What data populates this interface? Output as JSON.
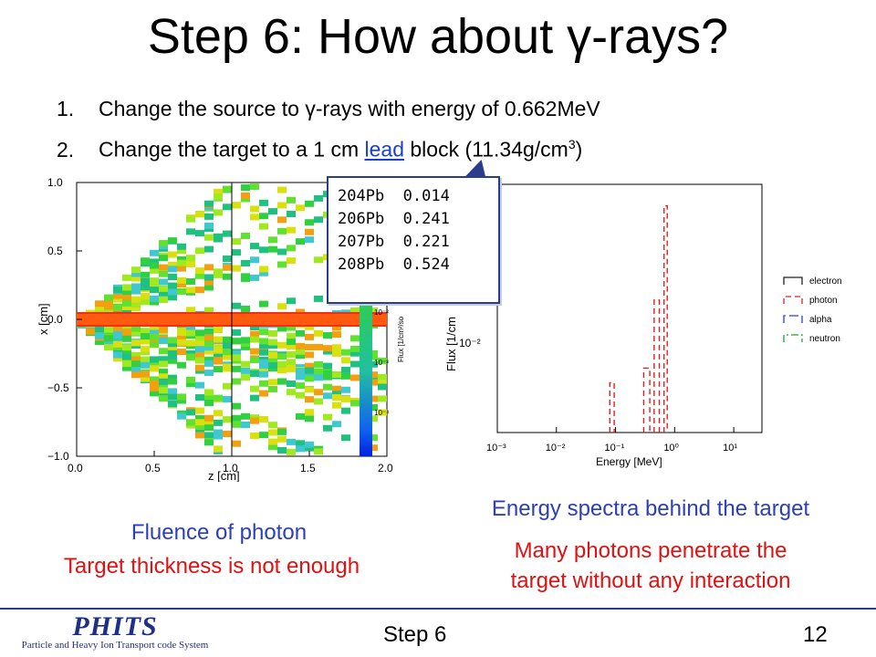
{
  "slide": {
    "title": "Step 6: How about γ-rays?",
    "steps": [
      {
        "num": "1.",
        "text_before": "Change the source to ",
        "gamma": "γ",
        "text_after": "-rays with energy of 0.662MeV"
      },
      {
        "num": "2.",
        "text_before": "Change the target to a 1 cm ",
        "link": "lead",
        "text_after": " block (11.34g/cm",
        "sup": "3",
        "close": ")"
      }
    ]
  },
  "callout": {
    "isotopes": [
      "204Pb  0.014",
      "206Pb  0.241",
      "207Pb  0.221",
      "208Pb  0.524"
    ]
  },
  "flux_plot": {
    "ylabel": "x [cm]",
    "xlabel": "z [cm]",
    "xticks": [
      "0.0",
      "0.5",
      "1.0",
      "1.5",
      "2.0"
    ],
    "yticks": [
      "1.0",
      "0.5",
      "0.0",
      "−0.5",
      "−1.0"
    ],
    "colorbar_label": "Flux [1/cm²/so",
    "colorbar_ticks": [
      "10⁻²",
      "10⁻³",
      "10⁻⁴"
    ]
  },
  "chart_data": {
    "type": "line",
    "xlabel": "Energy [MeV]",
    "ylabel": "Flux  [1/cm",
    "xscale": "log",
    "yscale": "log",
    "xlim": [
      0.001,
      30
    ],
    "xticks": [
      "10⁻³",
      "10⁻²",
      "10⁻¹",
      "10⁰",
      "10¹"
    ],
    "yticks": [
      "10⁻²"
    ],
    "legend_position": "right",
    "series": [
      {
        "name": "electron",
        "color": "#222222",
        "dash": "none",
        "x": [],
        "y": []
      },
      {
        "name": "photon",
        "color": "#e02020",
        "dash": "dashed",
        "x": [
          0.08,
          0.095,
          0.3,
          0.38,
          0.45,
          0.55,
          0.662,
          0.75
        ],
        "y": [
          0.004,
          0.004,
          0.006,
          0.03,
          0.04,
          0.05,
          0.55,
          0.55
        ]
      },
      {
        "name": "alpha",
        "color": "#2a3fd0",
        "dash": "long-dash",
        "x": [],
        "y": []
      },
      {
        "name": "neutron",
        "color": "#20a040",
        "dash": "dash-dot",
        "x": [],
        "y": []
      }
    ]
  },
  "captions": {
    "fluence": "Fluence of photon",
    "fluence_note": "Target thickness is not enough",
    "spectra": "Energy spectra behind the target",
    "spectra_note_line1": "Many photons penetrate the",
    "spectra_note_line2": "target without any interaction"
  },
  "footer": {
    "logo": "PHITS",
    "logo_sub": "Particle and Heavy Ion Transport code System",
    "step_label": "Step 6",
    "page": "12"
  },
  "colors": {
    "title_text": "#000000",
    "link": "#1a3fd0",
    "caption_blue": "#2c3fb8",
    "caption_red": "#e21010",
    "accent_navy": "#2a3c8c"
  }
}
